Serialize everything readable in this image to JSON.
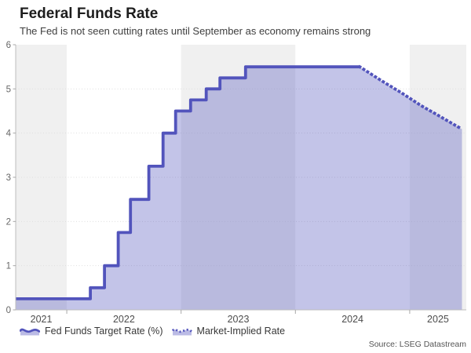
{
  "header": {
    "title": "Federal Funds Rate",
    "subtitle": "The Fed is not seen cutting rates until September as economy remains strong"
  },
  "legend": {
    "items": [
      {
        "label": "Fed Funds Target Rate (%)",
        "icon": "solid-area-wave-icon"
      },
      {
        "label": "Market-Implied Rate",
        "icon": "dotted-area-wave-icon"
      }
    ]
  },
  "footer": {
    "source": "Source: LSEG Datastream"
  },
  "colors": {
    "line": "#5254bc",
    "fill": "rgba(84,86,190,0.35)",
    "band": "#f0f0f0",
    "grid": "#dedede",
    "axis": "#bdbdbd",
    "tick": "#a8a8a8",
    "y_label": "#666666",
    "x_label": "#4c4c4c"
  },
  "chart_data": {
    "type": "area",
    "title": "Federal Funds Rate",
    "subtitle": "The Fed is not seen cutting rates until September as economy remains strong",
    "ylabel": "",
    "xlabel": "",
    "ylim": [
      0,
      6
    ],
    "y_ticks": [
      0,
      1,
      2,
      3,
      4,
      5,
      6
    ],
    "x_tick_labels": [
      "2021",
      "2022",
      "2023",
      "2024",
      "2025"
    ],
    "x_range_years": [
      2021.553,
      2025.495
    ],
    "grid": "horizontal-dotted",
    "background_bands": "alternating-year-shading",
    "legend_position": "bottom-left",
    "series": [
      {
        "name": "Fed Funds Target Rate (%)",
        "style": "solid-step",
        "points": [
          [
            2021.553,
            0.25
          ],
          [
            2022.206,
            0.5
          ],
          [
            2022.33,
            1.0
          ],
          [
            2022.45,
            1.75
          ],
          [
            2022.557,
            2.5
          ],
          [
            2022.718,
            3.25
          ],
          [
            2022.842,
            4.0
          ],
          [
            2022.952,
            4.5
          ],
          [
            2023.083,
            4.75
          ],
          [
            2023.22,
            5.0
          ],
          [
            2023.34,
            5.25
          ],
          [
            2023.564,
            5.5
          ],
          [
            2024.564,
            5.5
          ]
        ]
      },
      {
        "name": "Market-Implied Rate",
        "style": "dotted-line",
        "points": [
          [
            2024.564,
            5.5
          ],
          [
            2024.75,
            5.19
          ],
          [
            2024.935,
            4.9
          ],
          [
            2025.1,
            4.62
          ],
          [
            2025.25,
            4.4
          ],
          [
            2025.35,
            4.25
          ],
          [
            2025.457,
            4.09
          ]
        ]
      }
    ]
  }
}
